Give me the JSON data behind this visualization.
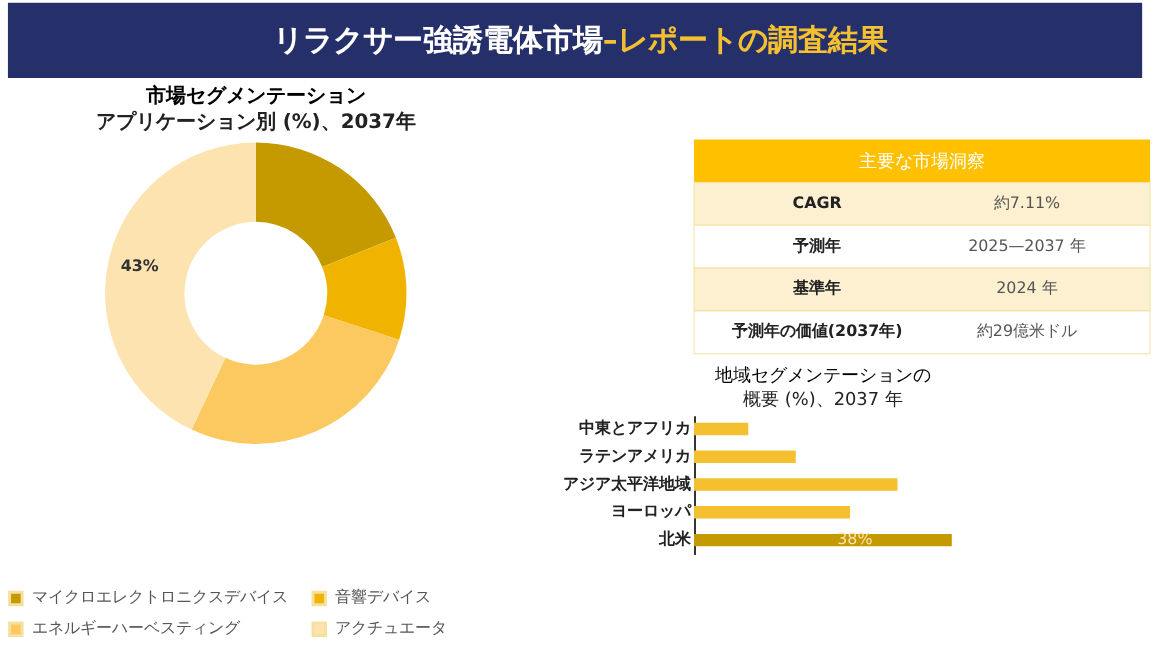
{
  "chart_data": [
    {
      "type": "other",
      "title": "リラクサー強誘電体市場 ",
      "subtitle": "–レポートの調査結果"
    },
    {
      "type": "donut",
      "title": "市場セグメンテーション",
      "subtitle": "アプリケーション別 (%)、2037年",
      "categories": [
        "マイクロエレクトロニクスデバイス",
        "音響デバイス",
        "エネルギーハーベスティング",
        "アクチュエータ"
      ],
      "values": [
        19,
        11,
        27,
        43
      ],
      "colors": [
        "#c49a00",
        "#f0b400",
        "#fcc860",
        "#fde3b0"
      ],
      "value_labels": [
        null,
        null,
        null,
        "43%"
      ],
      "legend": "bottom"
    },
    {
      "type": "other",
      "title": "主要な市場洞察",
      "annotations": [
        "CAGR",
        "約7.11%",
        "予測年",
        "2025—2037 年",
        "基準年",
        "2024 年",
        "予測年の価値(2037年)",
        "約29億米ドル"
      ]
    },
    {
      "type": "bar",
      "orientation": "horizontal",
      "title": "地域セグメンテーションの",
      "subtitle": "概要 (%)、2037 年",
      "categories": [
        "中東とアフリカ",
        "ラテンアメリカ",
        "アジア太平洋地域",
        "ヨーロッパ",
        "北米"
      ],
      "values": [
        8,
        15,
        30,
        23,
        38
      ],
      "colors": [
        "#f5c030",
        "#f5c030",
        "#f5c030",
        "#f5c030",
        "#c49a00"
      ],
      "value_labels": [
        null,
        null,
        null,
        null,
        "38%"
      ],
      "tick_labels": "y",
      "grid": false
    }
  ]
}
